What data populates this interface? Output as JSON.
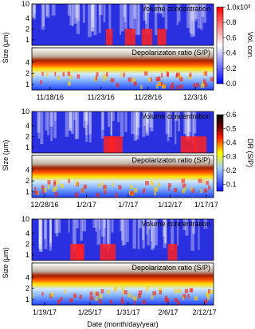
{
  "chart_data": [
    {
      "type": "heatmap",
      "panels": [
        "Volume concentration",
        "Depolarizaton ratio (S/P)"
      ],
      "ylabel": "Size (μm)",
      "ylim": [
        0.7,
        10
      ],
      "yticks": [
        1,
        2,
        4,
        10
      ],
      "log_y": true,
      "x": [
        "11/18/16",
        "11/23/16",
        "11/28/16",
        "12/3/16"
      ],
      "colorbar": {
        "title": "Vol. con.",
        "lim": [
          0,
          1
        ],
        "ticks": [
          {
            "value": 0,
            "label": "0.0"
          },
          0.2,
          0.4,
          0.6,
          0.8,
          {
            "value": 1,
            "label": "1.0x10³"
          }
        ]
      }
    },
    {
      "type": "heatmap",
      "panels": [
        "Volume concentration",
        "Depolarizaton ratio (S/P)"
      ],
      "ylabel": "Size (μm)",
      "ylim": [
        0.7,
        10
      ],
      "yticks": [
        1,
        2,
        4,
        10
      ],
      "log_y": true,
      "x": [
        "12/28/16",
        "1/2/17",
        "1/7/17",
        "1/12/17",
        "1/17/17"
      ],
      "colorbar": {
        "title": "DR (S/P)",
        "lim": [
          0.05,
          0.6
        ],
        "ticks": [
          0.1,
          0.2,
          0.3,
          0.4,
          0.5,
          0.6
        ]
      }
    },
    {
      "type": "heatmap",
      "panels": [
        "Volume concentration",
        "Depolarizaton ratio (S/P)"
      ],
      "ylabel": "Size (μm)",
      "ylim": [
        0.7,
        10
      ],
      "yticks": [
        1,
        2,
        4,
        10
      ],
      "log_y": true,
      "x": [
        "1/19/17",
        "1/25/17",
        "1/31/17",
        "2/6/17",
        "2/12/17"
      ],
      "xlabel": "Date (month/day/year)"
    }
  ]
}
